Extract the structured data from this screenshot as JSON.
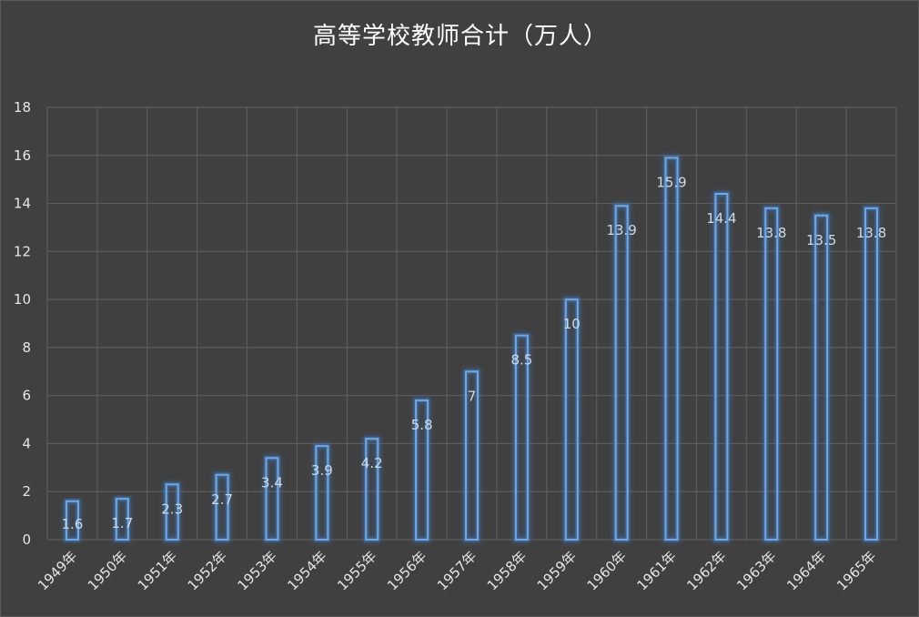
{
  "chart_data": {
    "type": "bar",
    "title": "高等学校教师合计（万人）",
    "categories": [
      "1949年",
      "1950年",
      "1951年",
      "1952年",
      "1953年",
      "1954年",
      "1955年",
      "1956年",
      "1957年",
      "1958年",
      "1959年",
      "1960年",
      "1961年",
      "1962年",
      "1963年",
      "1964年",
      "1965年"
    ],
    "values": [
      1.6,
      1.7,
      2.3,
      2.7,
      3.4,
      3.9,
      4.2,
      5.8,
      7,
      8.5,
      10,
      13.9,
      15.9,
      14.4,
      13.8,
      13.5,
      13.8
    ],
    "ylim": [
      0,
      18
    ],
    "yticks": [
      0,
      2,
      4,
      6,
      8,
      10,
      12,
      14,
      16,
      18
    ],
    "grid": true,
    "legend": "none",
    "colors": {
      "background": "#404040",
      "grid": "#5c5c5c",
      "bar_outline": "#6fa8e8",
      "bar_glow": "#3f7fc4"
    }
  }
}
